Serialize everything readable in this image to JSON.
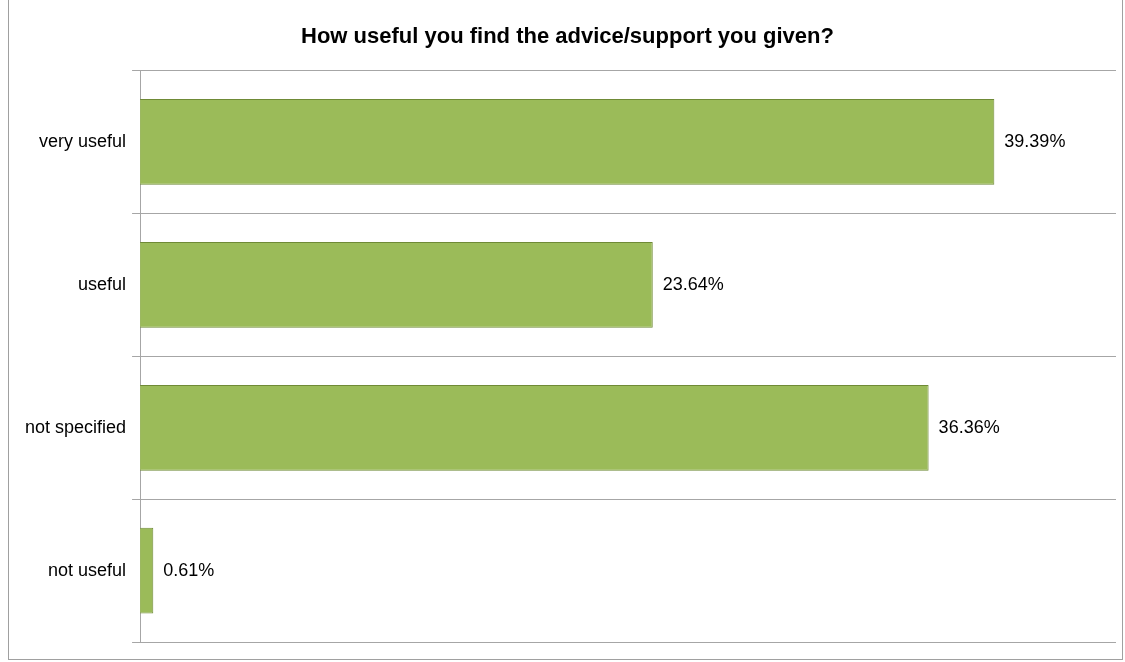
{
  "chart_data": {
    "type": "bar",
    "orientation": "horizontal",
    "title": "How useful you find the advice/support you given?",
    "categories": [
      "very useful",
      "useful",
      "not specified",
      "not useful"
    ],
    "values": [
      39.39,
      23.64,
      36.36,
      0.61
    ],
    "value_labels": [
      "39.39%",
      "23.64%",
      "36.36%",
      "0.61%"
    ],
    "color": "#9bbb59",
    "grid": "y",
    "legend": false
  }
}
